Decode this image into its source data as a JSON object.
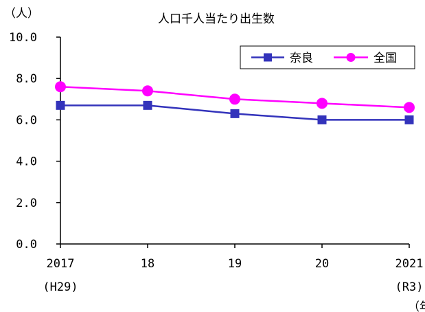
{
  "chart_data": {
    "type": "line",
    "title": "人口千人当たり出生数",
    "ylabel": "（人）",
    "xlabel": "（年）",
    "categories": [
      "2017",
      "18",
      "19",
      "20",
      "2021"
    ],
    "category_sublabels": [
      "(H29)",
      "",
      "",
      "",
      "(R3)"
    ],
    "ylim": [
      0,
      10
    ],
    "yticks": [
      "0.0",
      "2.0",
      "4.0",
      "6.0",
      "8.0",
      "10.0"
    ],
    "grid": false,
    "legend_position": "top-right",
    "series": [
      {
        "name": "奈良",
        "marker": "square",
        "color": "#3333bb",
        "values": [
          6.7,
          6.7,
          6.3,
          6.0,
          6.0
        ]
      },
      {
        "name": "全国",
        "marker": "circle",
        "color": "#ff00ff",
        "values": [
          7.6,
          7.4,
          7.0,
          6.8,
          6.6
        ]
      }
    ]
  }
}
